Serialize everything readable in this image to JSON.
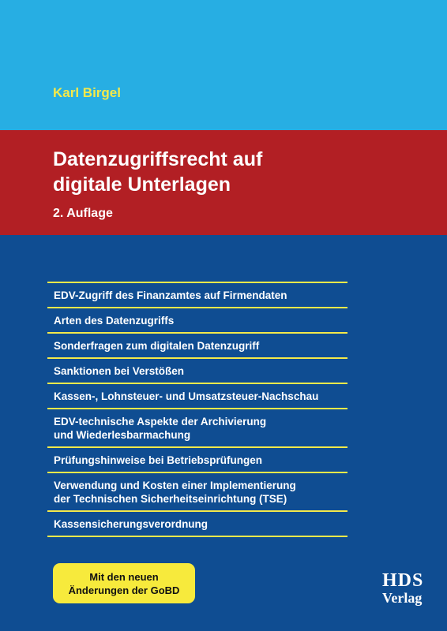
{
  "author": "Karl Birgel",
  "title": [
    "Datenzugriffsrecht auf",
    "digitale Unterlagen"
  ],
  "edition": "2. Auflage",
  "topics": [
    {
      "lines": [
        "EDV-Zugriff des Finanzamtes auf Firmendaten"
      ]
    },
    {
      "lines": [
        "Arten des Datenzugriffs"
      ]
    },
    {
      "lines": [
        "Sonderfragen zum digitalen Datenzugriff"
      ]
    },
    {
      "lines": [
        "Sanktionen bei Verstößen"
      ]
    },
    {
      "lines": [
        "Kassen-, Lohnsteuer- und Umsatzsteuer-Nachschau"
      ]
    },
    {
      "lines": [
        "EDV-technische Aspekte der Archivierung",
        "und Wiederlesbarmachung"
      ]
    },
    {
      "lines": [
        "Prüfungshinweise bei Betriebsprüfungen"
      ]
    },
    {
      "lines": [
        "Verwendung und Kosten einer Implementierung",
        "der Technischen Sicherheitseinrichtung (TSE)"
      ]
    },
    {
      "lines": [
        "Kassensicherungsverordnung"
      ]
    }
  ],
  "badge": [
    "Mit den neuen",
    "Änderungen der GoBD"
  ],
  "publisher": [
    "HDS",
    "Verlag"
  ]
}
